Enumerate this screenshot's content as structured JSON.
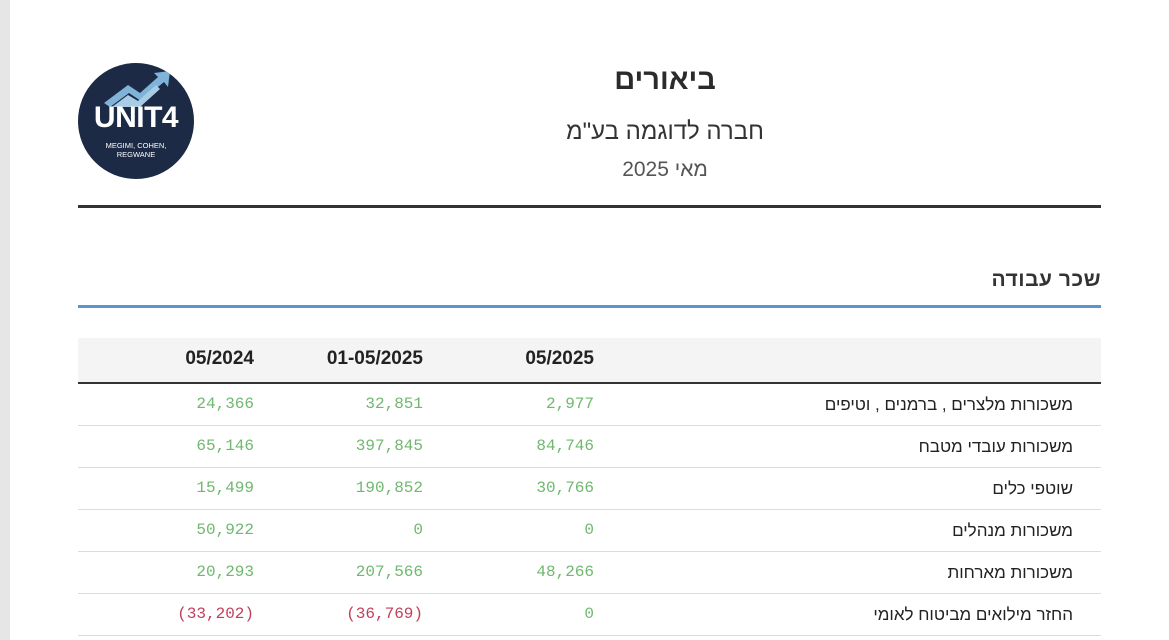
{
  "logo": {
    "main_text": "UNIT4",
    "sub_text": "MEGIMI, COHEN, REGWANE"
  },
  "header": {
    "title": "ביאורים",
    "company": "חברה לדוגמה בע\"מ",
    "period": "מאי 2025"
  },
  "section": {
    "title": "שכר עבודה"
  },
  "table": {
    "columns": [
      "05/2025",
      "01-05/2025",
      "05/2024"
    ],
    "rows": [
      {
        "label": "משכורות מלצרים , ברמנים , וטיפים",
        "c1": "2,977",
        "c2": "32,851",
        "c3": "24,366",
        "neg": [
          false,
          false,
          false
        ]
      },
      {
        "label": "משכורות עובדי מטבח",
        "c1": "84,746",
        "c2": "397,845",
        "c3": "65,146",
        "neg": [
          false,
          false,
          false
        ]
      },
      {
        "label": "שוטפי כלים",
        "c1": "30,766",
        "c2": "190,852",
        "c3": "15,499",
        "neg": [
          false,
          false,
          false
        ]
      },
      {
        "label": "משכורות מנהלים",
        "c1": "0",
        "c2": "0",
        "c3": "50,922",
        "neg": [
          false,
          false,
          false
        ]
      },
      {
        "label": "משכורות מארחות",
        "c1": "48,266",
        "c2": "207,566",
        "c3": "20,293",
        "neg": [
          false,
          false,
          false
        ]
      },
      {
        "label": "החזר מילואים מביטוח לאומי",
        "c1": "0",
        "c2": "(36,769)",
        "c3": "(33,202)",
        "neg": [
          false,
          true,
          true
        ]
      }
    ]
  },
  "colors": {
    "positive": "#6fb86f",
    "negative": "#c0405a",
    "accent_rule": "#5b93d3",
    "logo_bg": "#1d2a45"
  }
}
